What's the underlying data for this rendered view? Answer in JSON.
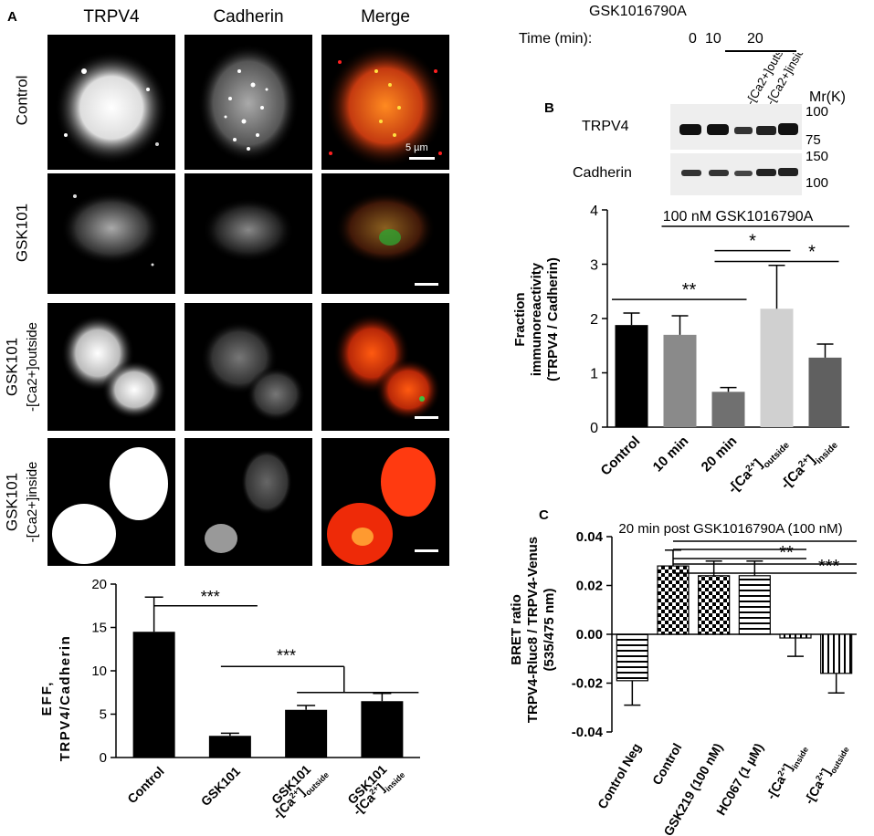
{
  "panelA": {
    "label": "A",
    "columns": [
      "TRPV4",
      "Cadherin",
      "Merge"
    ],
    "rows": [
      {
        "line1": "Control",
        "line2": ""
      },
      {
        "line1": "GSK101",
        "line2": ""
      },
      {
        "line1": "GSK101",
        "line2": "-[Ca2+]outside"
      },
      {
        "line1": "GSK101",
        "line2": "-[Ca2+]inside"
      }
    ],
    "scalebar_label": "5 µm"
  },
  "panelB": {
    "label": "B",
    "drug": "GSK1016790A",
    "time_label": "Time (min):",
    "time_0": "0",
    "time_10": "10",
    "time_20": "20",
    "lane_labels": [
      "-[Ca2+]outside",
      "-[Ca2+]inside"
    ],
    "mr_label": "Mr(K)",
    "blot1_name": "TRPV4",
    "blot1_markers": [
      "100",
      "75"
    ],
    "blot2_name": "Cadherin",
    "blot2_markers": [
      "150",
      "100"
    ],
    "bracket_label": "100 nM GSK1016790A",
    "sig1": "**",
    "sig2": "*",
    "sig3": "*"
  },
  "panelC": {
    "label": "C",
    "header": "20 min post GSK1016790A (100 nM)",
    "sig1": "**",
    "sig2": "***"
  },
  "chart_data": [
    {
      "id": "A-bottom",
      "type": "bar",
      "categories": [
        "Control",
        "GSK101",
        "GSK101 -[Ca2+]outside",
        "GSK101 -[Ca2+]inside"
      ],
      "values": [
        14.5,
        2.5,
        5.5,
        6.5
      ],
      "errors": [
        4.0,
        0.3,
        0.5,
        0.9
      ],
      "ylabel": "EFF, TRPV4/Cadherin",
      "ylim": [
        0,
        20
      ],
      "yticks": [
        0,
        5,
        10,
        15,
        20
      ],
      "significance": [
        "***",
        "***"
      ]
    },
    {
      "id": "B",
      "type": "bar",
      "categories": [
        "Control",
        "10 min",
        "20 min",
        "-[Ca2+]outside",
        "-[Ca2+]inside"
      ],
      "values": [
        1.88,
        1.7,
        0.65,
        2.18,
        1.28
      ],
      "errors": [
        0.22,
        0.35,
        0.08,
        0.8,
        0.25
      ],
      "ylabel": "Fraction immunoreactivity (TRPV4 / Cadherin)",
      "ylim": [
        0,
        4
      ],
      "yticks": [
        0,
        1,
        2,
        3,
        4
      ]
    },
    {
      "id": "C",
      "type": "bar",
      "categories": [
        "Control Neg",
        "Control",
        "GSK219 (100 nM)",
        "HC067 (1 µM)",
        "-[Ca2+]inside",
        "-[Ca2+]outside"
      ],
      "values": [
        -0.019,
        0.028,
        0.024,
        0.024,
        -0.0015,
        -0.016
      ],
      "errors": [
        0.01,
        0.0065,
        0.006,
        0.006,
        0.0075,
        0.008
      ],
      "ylabel": "BRET ratio TRPV4-Rluc8 / TRPV4-Venus (535/475 nm)",
      "ylim": [
        -0.04,
        0.04
      ],
      "yticks": [
        "-0.04",
        "-0.02",
        "0.00",
        "0.02",
        "0.04"
      ]
    }
  ]
}
